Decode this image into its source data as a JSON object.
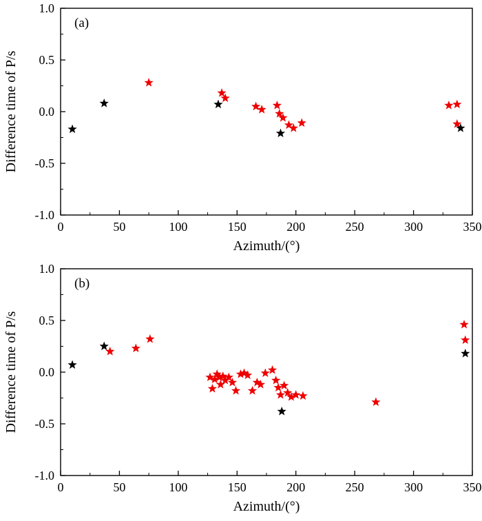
{
  "figure": {
    "background": "#ffffff",
    "frame_color": "#000000",
    "marker_colors": {
      "red": "#ee0000",
      "black": "#000000"
    }
  },
  "chart_data": [
    {
      "type": "scatter",
      "panel_label": "(a)",
      "xlabel": "Azimuth/(°)",
      "ylabel": "Difference time of P/s",
      "xlim": [
        0,
        350
      ],
      "ylim": [
        -1.0,
        1.0
      ],
      "xticks": [
        0,
        50,
        100,
        150,
        200,
        250,
        300,
        350
      ],
      "xtick_labels": [
        "0",
        "50",
        "100",
        "150",
        "200",
        "250",
        "300",
        "350"
      ],
      "yticks": [
        1.0,
        0.5,
        0.0,
        -0.5,
        -1.0
      ],
      "ytick_labels": [
        "1.0",
        "0.5",
        "0.0",
        "-0.5",
        "-1.0"
      ],
      "grid": false,
      "legend": null,
      "series": [
        {
          "name": "red-stars",
          "marker": "star",
          "color": "#ee0000",
          "points": [
            [
              75,
              0.28
            ],
            [
              137,
              0.18
            ],
            [
              140,
              0.13
            ],
            [
              166,
              0.05
            ],
            [
              171,
              0.02
            ],
            [
              184,
              0.06
            ],
            [
              186,
              -0.02
            ],
            [
              189,
              -0.06
            ],
            [
              194,
              -0.13
            ],
            [
              198,
              -0.16
            ],
            [
              205,
              -0.11
            ],
            [
              330,
              0.06
            ],
            [
              337,
              0.07
            ],
            [
              337,
              -0.12
            ]
          ]
        },
        {
          "name": "black-stars",
          "marker": "star",
          "color": "#000000",
          "points": [
            [
              10,
              -0.17
            ],
            [
              37,
              0.08
            ],
            [
              134,
              0.07
            ],
            [
              187,
              -0.21
            ],
            [
              340,
              -0.16
            ]
          ]
        }
      ]
    },
    {
      "type": "scatter",
      "panel_label": "(b)",
      "xlabel": "Azimuth/(°)",
      "ylabel": "Difference time of P/s",
      "xlim": [
        0,
        350
      ],
      "ylim": [
        -1.0,
        1.0
      ],
      "xticks": [
        0,
        50,
        100,
        150,
        200,
        250,
        300,
        350
      ],
      "xtick_labels": [
        "0",
        "50",
        "100",
        "150",
        "200",
        "250",
        "300",
        "350"
      ],
      "yticks": [
        1.0,
        0.5,
        0.0,
        -0.5,
        -1.0
      ],
      "ytick_labels": [
        "1.0",
        "0.5",
        "0.0",
        "-0.5",
        "-1.0"
      ],
      "grid": false,
      "legend": null,
      "series": [
        {
          "name": "red-stars",
          "marker": "star",
          "color": "#ee0000",
          "points": [
            [
              42,
              0.2
            ],
            [
              64,
              0.23
            ],
            [
              76,
              0.32
            ],
            [
              127,
              -0.05
            ],
            [
              129,
              -0.16
            ],
            [
              131,
              -0.07
            ],
            [
              133,
              -0.02
            ],
            [
              135,
              -0.05
            ],
            [
              136,
              -0.12
            ],
            [
              138,
              -0.04
            ],
            [
              140,
              -0.08
            ],
            [
              143,
              -0.05
            ],
            [
              146,
              -0.1
            ],
            [
              149,
              -0.18
            ],
            [
              153,
              -0.02
            ],
            [
              156,
              -0.01
            ],
            [
              159,
              -0.03
            ],
            [
              163,
              -0.18
            ],
            [
              167,
              -0.1
            ],
            [
              170,
              -0.12
            ],
            [
              174,
              -0.01
            ],
            [
              180,
              0.02
            ],
            [
              183,
              -0.08
            ],
            [
              185,
              -0.15
            ],
            [
              187,
              -0.22
            ],
            [
              190,
              -0.13
            ],
            [
              193,
              -0.2
            ],
            [
              196,
              -0.24
            ],
            [
              200,
              -0.22
            ],
            [
              206,
              -0.23
            ],
            [
              268,
              -0.29
            ],
            [
              343,
              0.46
            ],
            [
              344,
              0.31
            ]
          ]
        },
        {
          "name": "black-stars",
          "marker": "star",
          "color": "#000000",
          "points": [
            [
              10,
              0.07
            ],
            [
              37,
              0.25
            ],
            [
              188,
              -0.38
            ],
            [
              344,
              0.18
            ]
          ]
        }
      ]
    }
  ]
}
